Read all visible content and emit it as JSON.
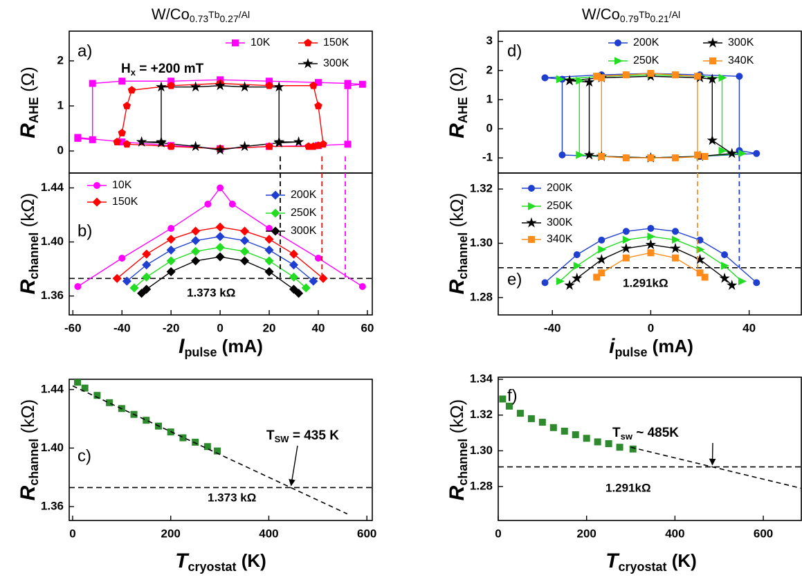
{
  "chart_data": [
    {
      "type": "line",
      "label": "a)",
      "title": [
        "W/Co",
        "0.73",
        "Tb",
        "0.27",
        "/Al"
      ],
      "annotation": [
        "H",
        "x",
        " = +200 mT"
      ],
      "ylabel": [
        "R",
        "AHE",
        " (Ω)"
      ],
      "xlim": [
        -61.5,
        62
      ],
      "ylim": [
        -0.49,
        2.66
      ],
      "yticks": [
        0,
        1,
        2
      ],
      "series": [
        {
          "name": "10K",
          "color": "#ff00ff",
          "marker": "square",
          "x": [
            -58,
            -52,
            -52,
            -40,
            -20,
            0,
            20,
            40,
            52,
            58,
            52,
            52,
            40,
            20,
            0,
            -20,
            -40,
            -58
          ],
          "values": [
            0.28,
            0.25,
            1.5,
            1.55,
            1.55,
            1.58,
            1.55,
            1.52,
            1.5,
            1.48,
            1.45,
            0.15,
            0.12,
            0.1,
            0.05,
            0.12,
            0.2,
            0.3
          ]
        },
        {
          "name": "150K",
          "color": "#ff0000",
          "marker": "pentagon",
          "x": [
            -42,
            -40,
            -38,
            -36,
            -20,
            0,
            20,
            38,
            40,
            42,
            40,
            38,
            36,
            20,
            0,
            -20,
            -38,
            -42
          ],
          "values": [
            0.2,
            0.4,
            1.0,
            1.35,
            1.45,
            1.5,
            1.45,
            1.45,
            1.0,
            0.15,
            0.12,
            0.1,
            0.1,
            0.1,
            0.05,
            0.1,
            0.15,
            0.2
          ]
        },
        {
          "name": "300K",
          "color": "#000000",
          "marker": "star",
          "x": [
            -32,
            -24,
            -24,
            -10,
            0,
            10,
            24,
            24,
            32,
            24,
            10,
            0,
            -10,
            -24,
            -32
          ],
          "values": [
            0.2,
            0.2,
            1.42,
            1.42,
            1.45,
            1.42,
            1.42,
            0.2,
            0.2,
            0.18,
            0.1,
            0.02,
            0.1,
            0.18,
            0.2
          ]
        }
      ],
      "vlines": [
        {
          "value": 24.5,
          "color": "#000000"
        },
        {
          "value": 41.5,
          "color": "#ff0000"
        },
        {
          "value": 51,
          "color": "#ff00ff"
        }
      ]
    },
    {
      "type": "line",
      "label": "b)",
      "ylabel": [
        "R",
        "channel",
        " (kΩ)"
      ],
      "xlabel": [
        "I",
        "pulse",
        " (mA)"
      ],
      "xlim": [
        -61.5,
        62
      ],
      "ylim": [
        1.346,
        1.451
      ],
      "xticks": [
        -60,
        -40,
        -20,
        0,
        20,
        40,
        60
      ],
      "yticks": [
        1.36,
        {
          "value": 1.4,
          "label": "1.40"
        },
        1.44
      ],
      "hline": {
        "value": 1.373,
        "label": "1.373 kΩ"
      },
      "series": [
        {
          "name": "10K",
          "color": "#ff00ff",
          "marker": "circle",
          "x": [
            -58,
            -40,
            -20,
            -5,
            0,
            5,
            20,
            40,
            58
          ],
          "values": [
            1.367,
            1.388,
            1.41,
            1.428,
            1.44,
            1.428,
            1.41,
            1.388,
            1.367
          ]
        },
        {
          "name": "150K",
          "color": "#ff0000",
          "marker": "diamond",
          "x": [
            -42,
            -30,
            -20,
            -10,
            0,
            10,
            20,
            30,
            42
          ],
          "values": [
            1.373,
            1.391,
            1.402,
            1.408,
            1.411,
            1.408,
            1.402,
            1.391,
            1.373
          ]
        },
        {
          "name": "200K",
          "color": "#1f3fd0",
          "marker": "diamond",
          "x": [
            -38,
            -30,
            -20,
            -10,
            0,
            10,
            20,
            30,
            38
          ],
          "values": [
            1.371,
            1.383,
            1.394,
            1.401,
            1.404,
            1.401,
            1.394,
            1.383,
            1.371
          ]
        },
        {
          "name": "250K",
          "color": "#22dd22",
          "marker": "diamond",
          "x": [
            -35,
            -30,
            -20,
            -10,
            0,
            10,
            20,
            30,
            35
          ],
          "values": [
            1.366,
            1.374,
            1.386,
            1.393,
            1.396,
            1.393,
            1.386,
            1.374,
            1.366
          ]
        },
        {
          "name": "300K",
          "color": "#000000",
          "marker": "diamond",
          "x": [
            -32,
            -30,
            -20,
            -10,
            0,
            10,
            20,
            30,
            32
          ],
          "values": [
            1.362,
            1.365,
            1.378,
            1.386,
            1.389,
            1.386,
            1.378,
            1.365,
            1.362
          ]
        }
      ]
    },
    {
      "type": "scatter",
      "label": "c)",
      "ylabel": [
        "R",
        "channel",
        " (kΩ)"
      ],
      "xlabel": [
        "T",
        "cryostat",
        " (K)"
      ],
      "xlim": [
        -7,
        611
      ],
      "ylim": [
        1.3505,
        1.447
      ],
      "xticks": [
        0,
        200,
        400,
        600
      ],
      "yticks": [
        1.36,
        {
          "value": 1.4,
          "label": "1.40"
        },
        1.44
      ],
      "hline": {
        "value": 1.373,
        "label": "1.373 kΩ"
      },
      "annotation": [
        "T",
        "SW",
        " = 435 K"
      ],
      "series": [
        {
          "color": "#2d8a2d",
          "marker": "square",
          "x": [
            10,
            25,
            50,
            75,
            100,
            125,
            150,
            175,
            200,
            225,
            250,
            275,
            295
          ],
          "values": [
            1.445,
            1.441,
            1.436,
            1.431,
            1.427,
            1.423,
            1.419,
            1.415,
            1.411,
            1.407,
            1.404,
            1.401,
            1.398
          ]
        }
      ],
      "fit": {
        "x": [
          0,
          560
        ],
        "values": [
          1.4425,
          1.355
        ]
      }
    },
    {
      "type": "line",
      "label": "d)",
      "title": [
        "W/Co",
        "0.79",
        "Tb",
        "0.21",
        "/Al"
      ],
      "ylabel": [
        "R",
        "AHE",
        " (Ω)"
      ],
      "xlim": [
        -62,
        61.2
      ],
      "ylim": [
        -1.52,
        3.35
      ],
      "yticks": [
        -1,
        0,
        1,
        2,
        3
      ],
      "series": [
        {
          "name": "200K",
          "color": "#1f3fd0",
          "marker": "circle",
          "x": [
            -43,
            -20,
            0,
            20,
            36,
            36,
            43,
            20,
            0,
            -20,
            -36,
            -36,
            -43
          ],
          "values": [
            1.75,
            1.85,
            1.9,
            1.85,
            1.8,
            -0.75,
            -0.85,
            -0.95,
            -1.0,
            -0.95,
            -0.9,
            1.7,
            1.75
          ]
        },
        {
          "name": "250K",
          "color": "#22dd22",
          "marker": "triangle",
          "x": [
            -37,
            -20,
            0,
            20,
            29,
            29,
            37,
            20,
            0,
            -20,
            -29,
            -29,
            -37
          ],
          "values": [
            1.7,
            1.8,
            1.85,
            1.8,
            1.75,
            -0.75,
            -0.85,
            -0.95,
            -1.0,
            -0.95,
            -0.9,
            1.65,
            1.7
          ]
        },
        {
          "name": "300K",
          "color": "#000000",
          "marker": "star",
          "x": [
            -33,
            -20,
            0,
            20,
            25,
            25,
            33,
            20,
            0,
            -20,
            -25,
            -25,
            -33
          ],
          "values": [
            1.65,
            1.75,
            1.8,
            1.75,
            1.7,
            -0.4,
            -0.85,
            -0.95,
            -1.0,
            -0.95,
            -0.9,
            1.6,
            1.65
          ]
        },
        {
          "name": "340K",
          "color": "#ff8c1a",
          "marker": "square",
          "x": [
            -22,
            -10,
            0,
            10,
            19,
            19,
            22,
            10,
            0,
            -10,
            -20,
            -20,
            -22
          ],
          "values": [
            1.8,
            1.85,
            1.9,
            1.85,
            1.8,
            -0.9,
            -0.95,
            -1.0,
            -1.0,
            -1.0,
            -0.95,
            1.75,
            1.8
          ]
        }
      ],
      "vlines": [
        {
          "value": 19,
          "color": "#ff8c1a"
        },
        {
          "value": 36,
          "color": "#1f3fd0"
        }
      ]
    },
    {
      "type": "line",
      "label": "e)",
      "ylabel": [
        "R",
        "channel",
        " (kΩ)"
      ],
      "xlabel": [
        "i",
        "pulse",
        " (mA)"
      ],
      "xlim": [
        -62,
        61.2
      ],
      "ylim": [
        1.2736,
        1.3259
      ],
      "xticks": [
        -40,
        0,
        40
      ],
      "yticks": [
        1.28,
        {
          "value": 1.3,
          "label": "1.30"
        },
        1.32
      ],
      "hline": {
        "value": 1.291,
        "label": "1.291kΩ"
      },
      "series": [
        {
          "name": "200K",
          "color": "#1f3fd0",
          "marker": "circle",
          "x": [
            -43,
            -30,
            -20,
            -10,
            0,
            10,
            20,
            30,
            43
          ],
          "values": [
            1.2855,
            1.2958,
            1.3012,
            1.3044,
            1.3055,
            1.3044,
            1.3012,
            1.2958,
            1.2855
          ]
        },
        {
          "name": "250K",
          "color": "#22dd22",
          "marker": "triangle",
          "x": [
            -37,
            -30,
            -20,
            -10,
            0,
            10,
            20,
            30,
            37
          ],
          "values": [
            1.286,
            1.2917,
            1.2977,
            1.3013,
            1.3025,
            1.3013,
            1.2977,
            1.2917,
            1.286
          ]
        },
        {
          "name": "300K",
          "color": "#000000",
          "marker": "star",
          "x": [
            -33,
            -30,
            -20,
            -10,
            0,
            10,
            20,
            30,
            33
          ],
          "values": [
            1.2845,
            1.2871,
            1.294,
            1.2981,
            1.2995,
            1.2981,
            1.294,
            1.2871,
            1.2845
          ]
        },
        {
          "name": "340K",
          "color": "#ff8c1a",
          "marker": "square",
          "x": [
            -22,
            -20,
            -10,
            0,
            10,
            20,
            22
          ],
          "values": [
            1.2875,
            1.2891,
            1.2946,
            1.2965,
            1.2946,
            1.2891,
            1.2875
          ]
        }
      ]
    },
    {
      "type": "scatter",
      "label": "f)",
      "ylabel": [
        "R",
        "channel",
        " (kΩ)"
      ],
      "xlabel": [
        "T",
        "cryostat",
        " (K)"
      ],
      "xlim": [
        0,
        686
      ],
      "ylim": [
        1.261,
        1.3412
      ],
      "xticks": [
        0,
        200,
        400,
        600
      ],
      "yticks": [
        1.28,
        {
          "value": 1.3,
          "label": "1.30"
        },
        1.32,
        1.34
      ],
      "hline": {
        "value": 1.291,
        "label": "1.291kΩ"
      },
      "annotation": [
        "T",
        "sw",
        " ~ 485K"
      ],
      "series": [
        {
          "color": "#2d8a2d",
          "marker": "square",
          "x": [
            10,
            25,
            50,
            75,
            100,
            125,
            150,
            175,
            200,
            225,
            250,
            275,
            305
          ],
          "values": [
            1.329,
            1.325,
            1.321,
            1.318,
            1.316,
            1.313,
            1.311,
            1.309,
            1.307,
            1.305,
            1.304,
            1.302,
            1.301
          ]
        }
      ],
      "fit": {
        "x": [
          300,
          686
        ],
        "values": [
          1.302,
          1.279
        ]
      }
    }
  ]
}
